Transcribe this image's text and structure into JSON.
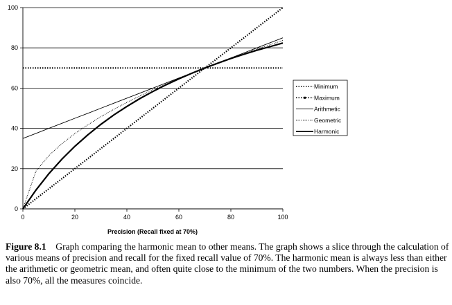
{
  "chart_data": {
    "type": "line",
    "title": "",
    "xlabel": "Precision (Recall fixed at 70%)",
    "ylabel": "",
    "xlim": [
      0,
      100
    ],
    "ylim": [
      0,
      100
    ],
    "x_ticks": [
      0,
      20,
      40,
      60,
      80,
      100
    ],
    "y_ticks": [
      0,
      20,
      40,
      60,
      80,
      100
    ],
    "grid": "horizontal",
    "legend_position": "right",
    "recall_fixed": 70,
    "x": [
      0,
      5,
      10,
      15,
      20,
      25,
      30,
      35,
      40,
      45,
      50,
      55,
      60,
      65,
      70,
      75,
      80,
      85,
      90,
      95,
      100
    ],
    "series": [
      {
        "name": "Minimum",
        "style": "dotted",
        "values": [
          0,
          5,
          10,
          15,
          20,
          25,
          30,
          35,
          40,
          45,
          50,
          55,
          60,
          65,
          70,
          70,
          70,
          70,
          70,
          70,
          70
        ]
      },
      {
        "name": "Maximum",
        "style": "dotted-marked",
        "values": [
          70,
          70,
          70,
          70,
          70,
          70,
          70,
          70,
          70,
          70,
          70,
          70,
          70,
          70,
          70,
          75,
          80,
          85,
          90,
          95,
          100
        ]
      },
      {
        "name": "Arithmetic",
        "style": "thin-solid",
        "values": [
          35,
          37.5,
          40,
          42.5,
          45,
          47.5,
          50,
          52.5,
          55,
          57.5,
          60,
          62.5,
          65,
          67.5,
          70,
          72.5,
          75,
          77.5,
          80,
          82.5,
          85
        ]
      },
      {
        "name": "Geometric",
        "style": "fine-dotted",
        "values": [
          0,
          18.7,
          26.5,
          32.4,
          37.4,
          41.8,
          45.8,
          49.5,
          52.9,
          56.1,
          59.2,
          62.0,
          64.8,
          67.5,
          70,
          72.5,
          74.8,
          77.1,
          79.4,
          81.5,
          83.7
        ]
      },
      {
        "name": "Harmonic",
        "style": "thick-solid",
        "values": [
          0,
          9.3,
          17.5,
          24.7,
          31.1,
          36.8,
          42.0,
          46.7,
          50.9,
          54.8,
          58.3,
          61.6,
          64.6,
          67.4,
          70,
          72.4,
          74.7,
          76.8,
          78.8,
          80.6,
          82.4
        ]
      }
    ]
  },
  "caption": {
    "label": "Figure 8.1",
    "text": "Graph comparing the harmonic mean to other means. The graph shows a slice through the calculation of various means of precision and recall for the fixed recall value of 70%. The harmonic mean is always less than either the arithmetic or geometric mean, and often quite close to the minimum of the two numbers. When the precision is also 70%, all the measures coincide."
  }
}
